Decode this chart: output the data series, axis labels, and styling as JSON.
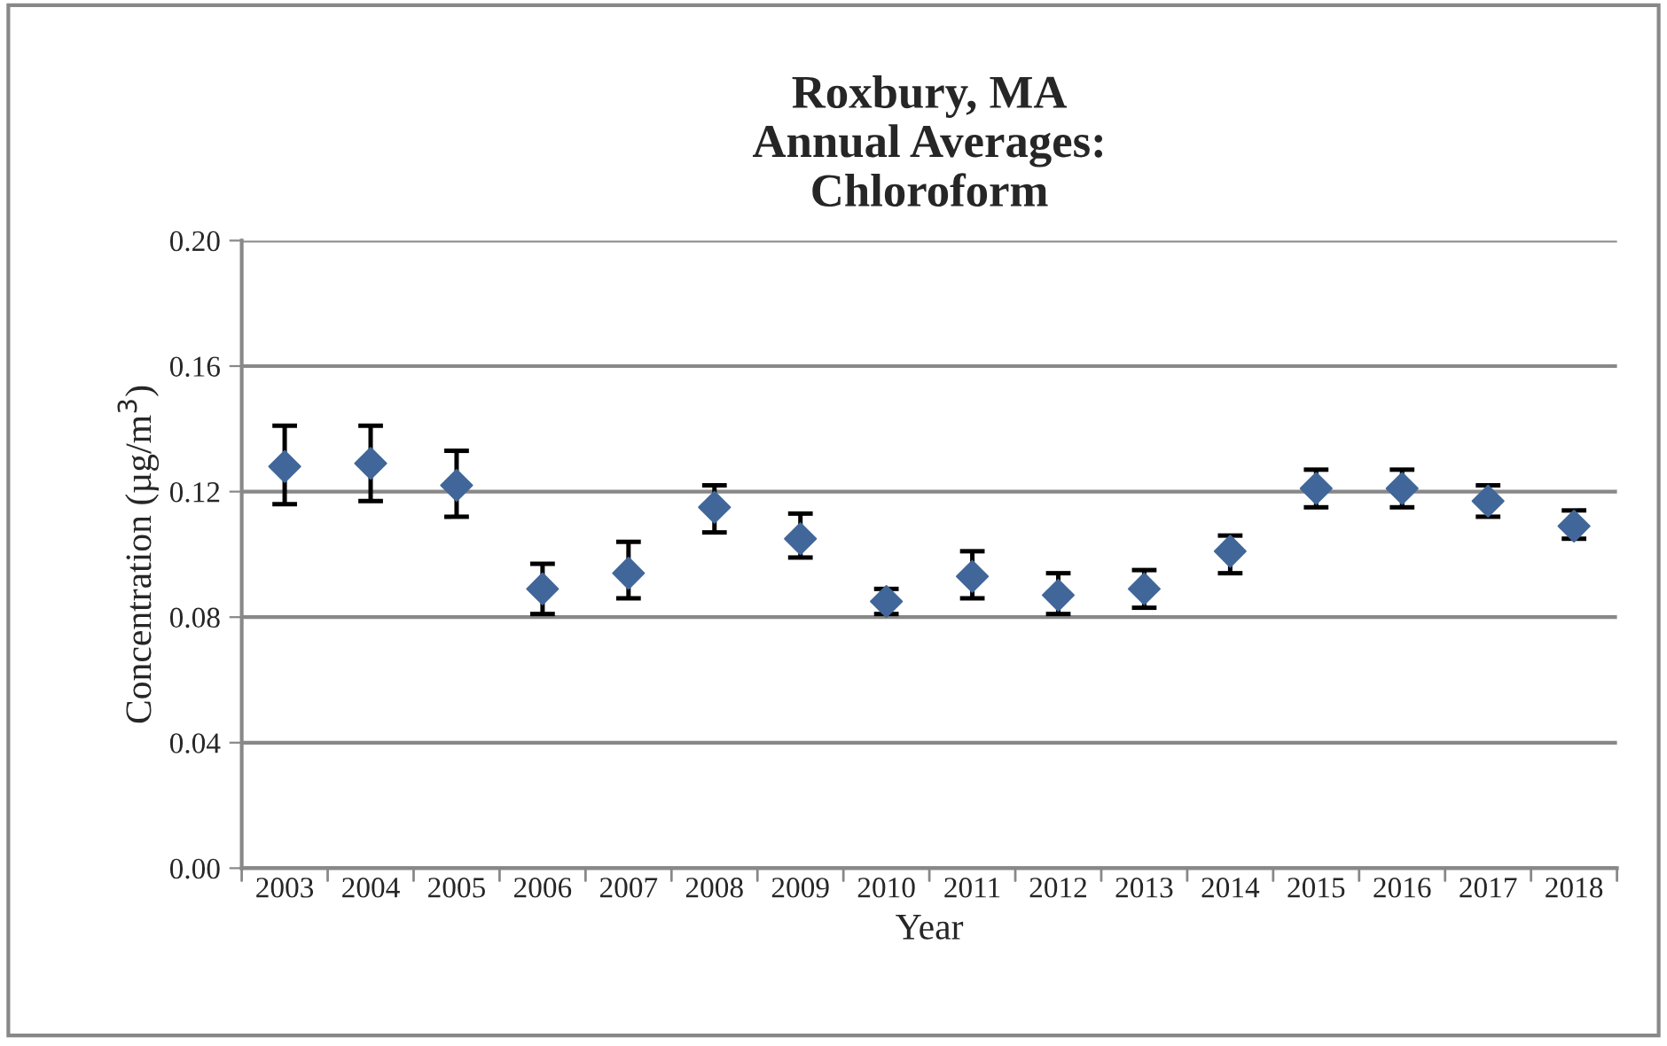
{
  "chart_data": {
    "type": "scatter",
    "title": "Roxbury, MA\nAnnual Averages:\nChloroform",
    "xlabel": "Year",
    "ylabel": "Concentration (µg/m$^{3}$)",
    "categories": [
      "2003",
      "2004",
      "2005",
      "2006",
      "2007",
      "2008",
      "2009",
      "2010",
      "2011",
      "2012",
      "2013",
      "2014",
      "2015",
      "2016",
      "2017",
      "2018"
    ],
    "series": [
      {
        "color": "#41679a",
        "values": [
          0.128,
          0.129,
          0.122,
          0.089,
          0.094,
          0.115,
          0.105,
          0.085,
          0.093,
          0.087,
          0.089,
          0.101,
          0.121,
          0.121,
          0.117,
          0.109
        ],
        "errors": [
          [
            0.116,
            0.141
          ],
          [
            0.117,
            0.141
          ],
          [
            0.112,
            0.133
          ],
          [
            0.081,
            0.097
          ],
          [
            0.086,
            0.104
          ],
          [
            0.107,
            0.122
          ],
          [
            0.099,
            0.113
          ],
          [
            0.081,
            0.089
          ],
          [
            0.086,
            0.101
          ],
          [
            0.081,
            0.094
          ],
          [
            0.083,
            0.095
          ],
          [
            0.094,
            0.106
          ],
          [
            0.115,
            0.127
          ],
          [
            0.115,
            0.127
          ],
          [
            0.112,
            0.122
          ],
          [
            0.105,
            0.114
          ]
        ]
      }
    ],
    "ylim": [
      0,
      0.2
    ],
    "yticks": [
      {
        "value": 0,
        "label": "0.00"
      },
      {
        "value": 0.04,
        "label": "0.04"
      },
      {
        "value": 0.08,
        "label": "0.08"
      },
      {
        "value": 0.12,
        "label": "0.12"
      },
      {
        "value": 0.16,
        "label": "0.16"
      },
      {
        "value": 0.2,
        "label": "0.20"
      }
    ],
    "grid": "y",
    "marker": "diamond",
    "legend": false
  }
}
